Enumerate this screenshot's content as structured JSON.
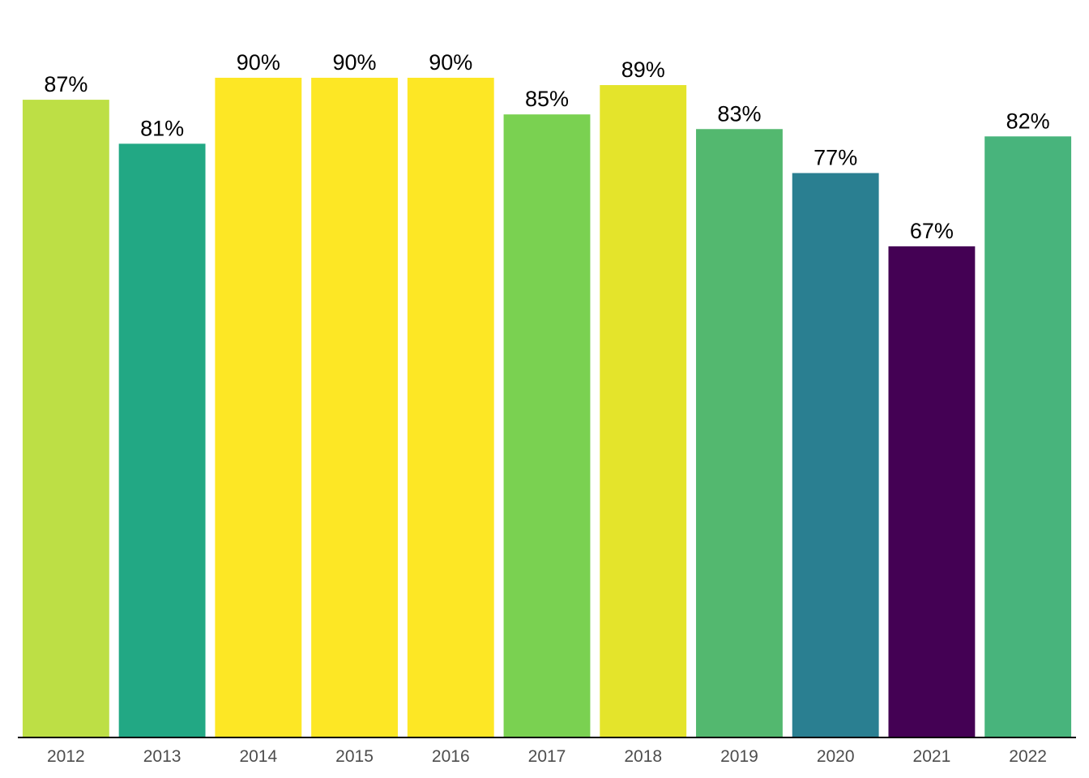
{
  "chart_data": {
    "type": "bar",
    "title": "",
    "xlabel": "",
    "ylabel": "",
    "ylim": [
      0,
      100
    ],
    "grid": false,
    "legend": "none",
    "categories": [
      "2012",
      "2013",
      "2014",
      "2015",
      "2016",
      "2017",
      "2018",
      "2019",
      "2020",
      "2021",
      "2022"
    ],
    "values": [
      87,
      81,
      90,
      90,
      90,
      85,
      89,
      83,
      77,
      67,
      82
    ],
    "value_labels": [
      "87%",
      "81%",
      "90%",
      "90%",
      "90%",
      "85%",
      "89%",
      "83%",
      "77%",
      "67%",
      "82%"
    ],
    "colors": [
      "#bddf45",
      "#22a884",
      "#fde725",
      "#fde725",
      "#fde725",
      "#7ad151",
      "#e4e42b",
      "#53b86f",
      "#2a7f91",
      "#440154",
      "#48b47c"
    ]
  }
}
